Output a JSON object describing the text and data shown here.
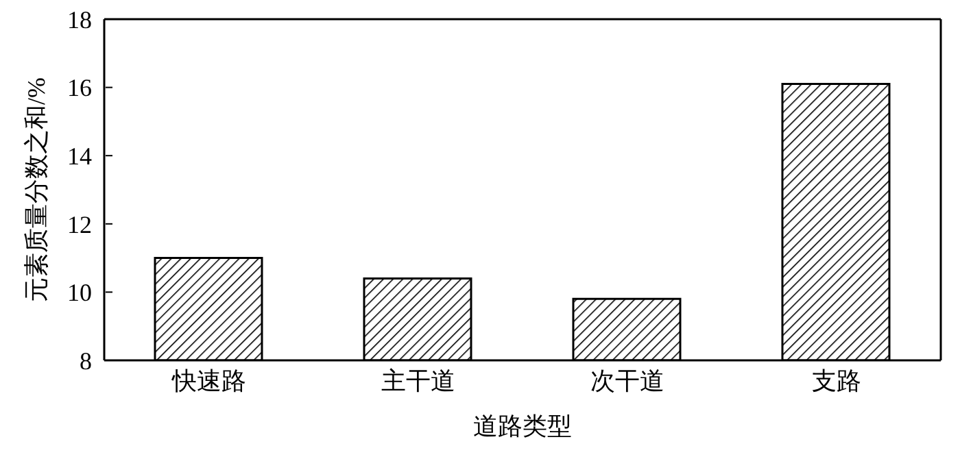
{
  "chart_data": {
    "type": "bar",
    "xlabel": "道路类型",
    "ylabel": "元素质量分数之和/%",
    "categories": [
      "快速路",
      "主干道",
      "次干道",
      "支路"
    ],
    "values": [
      11.0,
      10.4,
      9.8,
      16.1
    ],
    "color": "#000000",
    "ylim": [
      8,
      18
    ],
    "yticks": [
      8,
      10,
      12,
      14,
      16,
      18
    ],
    "grid": false
  }
}
